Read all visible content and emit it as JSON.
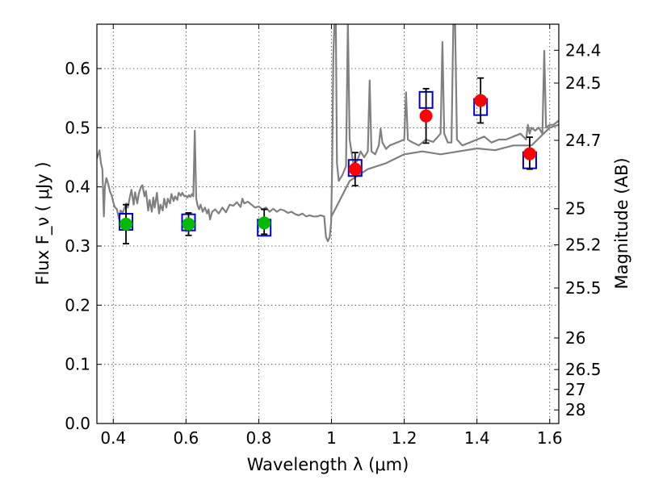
{
  "chart_data": {
    "type": "scatter",
    "xlabel": "Wavelength  λ (μm)",
    "ylabel": "Flux  F_ν  ( μJy )",
    "ylabel_right": "Magnitude (AB)",
    "xlim": [
      0.355,
      1.625
    ],
    "ylim": [
      0.0,
      0.675
    ],
    "grid": true,
    "x_ticks": [
      {
        "value": 0.4,
        "label": "0.4"
      },
      {
        "value": 0.6,
        "label": "0.6"
      },
      {
        "value": 0.8,
        "label": "0.8"
      },
      {
        "value": 1.0,
        "label": "1"
      },
      {
        "value": 1.2,
        "label": "1.2"
      },
      {
        "value": 1.4,
        "label": "1.4"
      },
      {
        "value": 1.6,
        "label": "1.6"
      }
    ],
    "y_ticks": [
      {
        "value": 0.0,
        "label": "0.0"
      },
      {
        "value": 0.1,
        "label": "0.1"
      },
      {
        "value": 0.2,
        "label": "0.2"
      },
      {
        "value": 0.3,
        "label": "0.3"
      },
      {
        "value": 0.4,
        "label": "0.4"
      },
      {
        "value": 0.5,
        "label": "0.5"
      },
      {
        "value": 0.6,
        "label": "0.6"
      }
    ],
    "right_ticks": [
      {
        "value": 24.4,
        "label": "24.4"
      },
      {
        "value": 24.5,
        "label": "24.5"
      },
      {
        "value": 24.7,
        "label": "24.7"
      },
      {
        "value": 25.0,
        "label": "25"
      },
      {
        "value": 25.2,
        "label": "25.2"
      },
      {
        "value": 25.5,
        "label": "25.5"
      },
      {
        "value": 26.0,
        "label": "26"
      },
      {
        "value": 26.5,
        "label": "26.5"
      },
      {
        "value": 27.0,
        "label": "27"
      },
      {
        "value": 28.0,
        "label": "28"
      }
    ],
    "series": [
      {
        "kind": "line",
        "color": "#808080",
        "points": [
          [
            0.355,
            0.448
          ],
          [
            0.362,
            0.462
          ],
          [
            0.366,
            0.44
          ],
          [
            0.37,
            0.43
          ],
          [
            0.374,
            0.35
          ],
          [
            0.377,
            0.4
          ],
          [
            0.381,
            0.415
          ],
          [
            0.386,
            0.405
          ],
          [
            0.391,
            0.392
          ],
          [
            0.396,
            0.385
          ],
          [
            0.4,
            0.374
          ],
          [
            0.404,
            0.366
          ],
          [
            0.41,
            0.362
          ],
          [
            0.416,
            0.345
          ],
          [
            0.42,
            0.36
          ],
          [
            0.426,
            0.356
          ],
          [
            0.43,
            0.363
          ],
          [
            0.436,
            0.372
          ],
          [
            0.44,
            0.365
          ],
          [
            0.446,
            0.384
          ],
          [
            0.45,
            0.395
          ],
          [
            0.456,
            0.37
          ],
          [
            0.46,
            0.391
          ],
          [
            0.466,
            0.372
          ],
          [
            0.47,
            0.388
          ],
          [
            0.476,
            0.4
          ],
          [
            0.48,
            0.403
          ],
          [
            0.486,
            0.384
          ],
          [
            0.49,
            0.393
          ],
          [
            0.496,
            0.36
          ],
          [
            0.5,
            0.378
          ],
          [
            0.506,
            0.358
          ],
          [
            0.51,
            0.382
          ],
          [
            0.514,
            0.365
          ],
          [
            0.52,
            0.39
          ],
          [
            0.526,
            0.355
          ],
          [
            0.53,
            0.37
          ],
          [
            0.536,
            0.36
          ],
          [
            0.54,
            0.38
          ],
          [
            0.546,
            0.365
          ],
          [
            0.55,
            0.38
          ],
          [
            0.556,
            0.372
          ],
          [
            0.56,
            0.388
          ],
          [
            0.566,
            0.376
          ],
          [
            0.57,
            0.384
          ],
          [
            0.576,
            0.378
          ],
          [
            0.58,
            0.39
          ],
          [
            0.586,
            0.385
          ],
          [
            0.59,
            0.39
          ],
          [
            0.596,
            0.384
          ],
          [
            0.6,
            0.385
          ],
          [
            0.604,
            0.382
          ],
          [
            0.608,
            0.386
          ],
          [
            0.612,
            0.383
          ],
          [
            0.616,
            0.388
          ],
          [
            0.62,
            0.384
          ],
          [
            0.624,
            0.495
          ],
          [
            0.628,
            0.38
          ],
          [
            0.632,
            0.368
          ],
          [
            0.636,
            0.362
          ],
          [
            0.64,
            0.37
          ],
          [
            0.646,
            0.358
          ],
          [
            0.652,
            0.365
          ],
          [
            0.658,
            0.355
          ],
          [
            0.662,
            0.362
          ],
          [
            0.666,
            0.345
          ],
          [
            0.672,
            0.358
          ],
          [
            0.68,
            0.362
          ],
          [
            0.69,
            0.355
          ],
          [
            0.7,
            0.365
          ],
          [
            0.71,
            0.357
          ],
          [
            0.72,
            0.37
          ],
          [
            0.73,
            0.368
          ],
          [
            0.74,
            0.374
          ],
          [
            0.75,
            0.366
          ],
          [
            0.755,
            0.38
          ],
          [
            0.76,
            0.372
          ],
          [
            0.77,
            0.375
          ],
          [
            0.78,
            0.37
          ],
          [
            0.79,
            0.365
          ],
          [
            0.8,
            0.367
          ],
          [
            0.81,
            0.362
          ],
          [
            0.82,
            0.365
          ],
          [
            0.83,
            0.358
          ],
          [
            0.84,
            0.363
          ],
          [
            0.85,
            0.358
          ],
          [
            0.86,
            0.362
          ],
          [
            0.87,
            0.36
          ],
          [
            0.88,
            0.356
          ],
          [
            0.89,
            0.358
          ],
          [
            0.9,
            0.354
          ],
          [
            0.91,
            0.352
          ],
          [
            0.92,
            0.355
          ],
          [
            0.93,
            0.35
          ],
          [
            0.94,
            0.352
          ],
          [
            0.95,
            0.35
          ],
          [
            0.96,
            0.35
          ],
          [
            0.97,
            0.352
          ],
          [
            0.98,
            0.35
          ],
          [
            0.985,
            0.315
          ],
          [
            0.99,
            0.308
          ],
          [
            0.995,
            0.315
          ],
          [
            0.999,
            0.34
          ],
          [
            1.002,
            0.44
          ],
          [
            1.005,
            0.62
          ],
          [
            1.008,
            0.675
          ],
          [
            1.012,
            0.675
          ],
          [
            1.015,
            0.44
          ],
          [
            1.02,
            0.41
          ],
          [
            1.03,
            0.42
          ],
          [
            1.04,
            0.435
          ],
          [
            1.045,
            0.68
          ],
          [
            1.05,
            0.48
          ],
          [
            1.06,
            0.44
          ],
          [
            1.07,
            0.443
          ],
          [
            1.08,
            0.46
          ],
          [
            1.09,
            0.45
          ],
          [
            1.1,
            0.46
          ],
          [
            1.105,
            0.58
          ],
          [
            1.11,
            0.46
          ],
          [
            1.12,
            0.455
          ],
          [
            1.13,
            0.47
          ],
          [
            1.135,
            0.498
          ],
          [
            1.14,
            0.475
          ],
          [
            1.15,
            0.464
          ],
          [
            1.16,
            0.47
          ],
          [
            1.18,
            0.475
          ],
          [
            1.2,
            0.48
          ],
          [
            1.205,
            0.56
          ],
          [
            1.21,
            0.48
          ],
          [
            1.22,
            0.476
          ],
          [
            1.24,
            0.47
          ],
          [
            1.26,
            0.48
          ],
          [
            1.28,
            0.476
          ],
          [
            1.3,
            0.49
          ],
          [
            1.305,
            0.645
          ],
          [
            1.31,
            0.49
          ],
          [
            1.32,
            0.475
          ],
          [
            1.33,
            0.475
          ],
          [
            1.335,
            0.675
          ],
          [
            1.34,
            0.675
          ],
          [
            1.345,
            0.48
          ],
          [
            1.36,
            0.47
          ],
          [
            1.38,
            0.475
          ],
          [
            1.4,
            0.48
          ],
          [
            1.42,
            0.485
          ],
          [
            1.44,
            0.475
          ],
          [
            1.46,
            0.48
          ],
          [
            1.48,
            0.48
          ],
          [
            1.5,
            0.485
          ],
          [
            1.52,
            0.49
          ],
          [
            1.535,
            0.48
          ],
          [
            1.54,
            0.505
          ],
          [
            1.545,
            0.49
          ],
          [
            1.55,
            0.5
          ],
          [
            1.56,
            0.495
          ],
          [
            1.57,
            0.5
          ],
          [
            1.58,
            0.49
          ],
          [
            1.585,
            0.63
          ],
          [
            1.59,
            0.5
          ],
          [
            1.6,
            0.505
          ],
          [
            1.61,
            0.505
          ],
          [
            1.625,
            0.512
          ]
        ]
      },
      {
        "kind": "line",
        "color": "#808080",
        "points": [
          [
            1.0,
            0.35
          ],
          [
            1.05,
            0.41
          ],
          [
            1.1,
            0.43
          ],
          [
            1.15,
            0.44
          ],
          [
            1.2,
            0.455
          ],
          [
            1.25,
            0.46
          ],
          [
            1.3,
            0.455
          ],
          [
            1.35,
            0.46
          ],
          [
            1.4,
            0.465
          ],
          [
            1.45,
            0.462
          ],
          [
            1.5,
            0.47
          ],
          [
            1.55,
            0.47
          ],
          [
            1.6,
            0.5
          ],
          [
            1.625,
            0.505
          ]
        ]
      },
      {
        "kind": "open-square",
        "color": "#0000cc",
        "points": [
          [
            0.435,
            0.341
          ],
          [
            0.607,
            0.34
          ],
          [
            0.815,
            0.331
          ],
          [
            1.065,
            0.432
          ],
          [
            1.26,
            0.547
          ],
          [
            1.41,
            0.535
          ],
          [
            1.545,
            0.445
          ]
        ]
      },
      {
        "kind": "filled-circle",
        "color": "#00bb00",
        "points": [
          [
            0.435,
            0.337
          ],
          [
            0.607,
            0.337
          ],
          [
            0.815,
            0.339
          ]
        ]
      },
      {
        "kind": "filled-circle",
        "color": "#ff0000",
        "points": [
          [
            1.065,
            0.43
          ],
          [
            1.26,
            0.52
          ],
          [
            1.41,
            0.546
          ],
          [
            1.545,
            0.456
          ]
        ]
      },
      {
        "kind": "errorbar",
        "color": "#000000",
        "points": [
          [
            0.435,
            0.304,
            0.37
          ],
          [
            0.607,
            0.318,
            0.356
          ],
          [
            0.815,
            0.32,
            0.362
          ],
          [
            1.065,
            0.402,
            0.458
          ],
          [
            1.26,
            0.474,
            0.566
          ],
          [
            1.41,
            0.508,
            0.584
          ],
          [
            1.545,
            0.43,
            0.484
          ]
        ]
      }
    ]
  }
}
